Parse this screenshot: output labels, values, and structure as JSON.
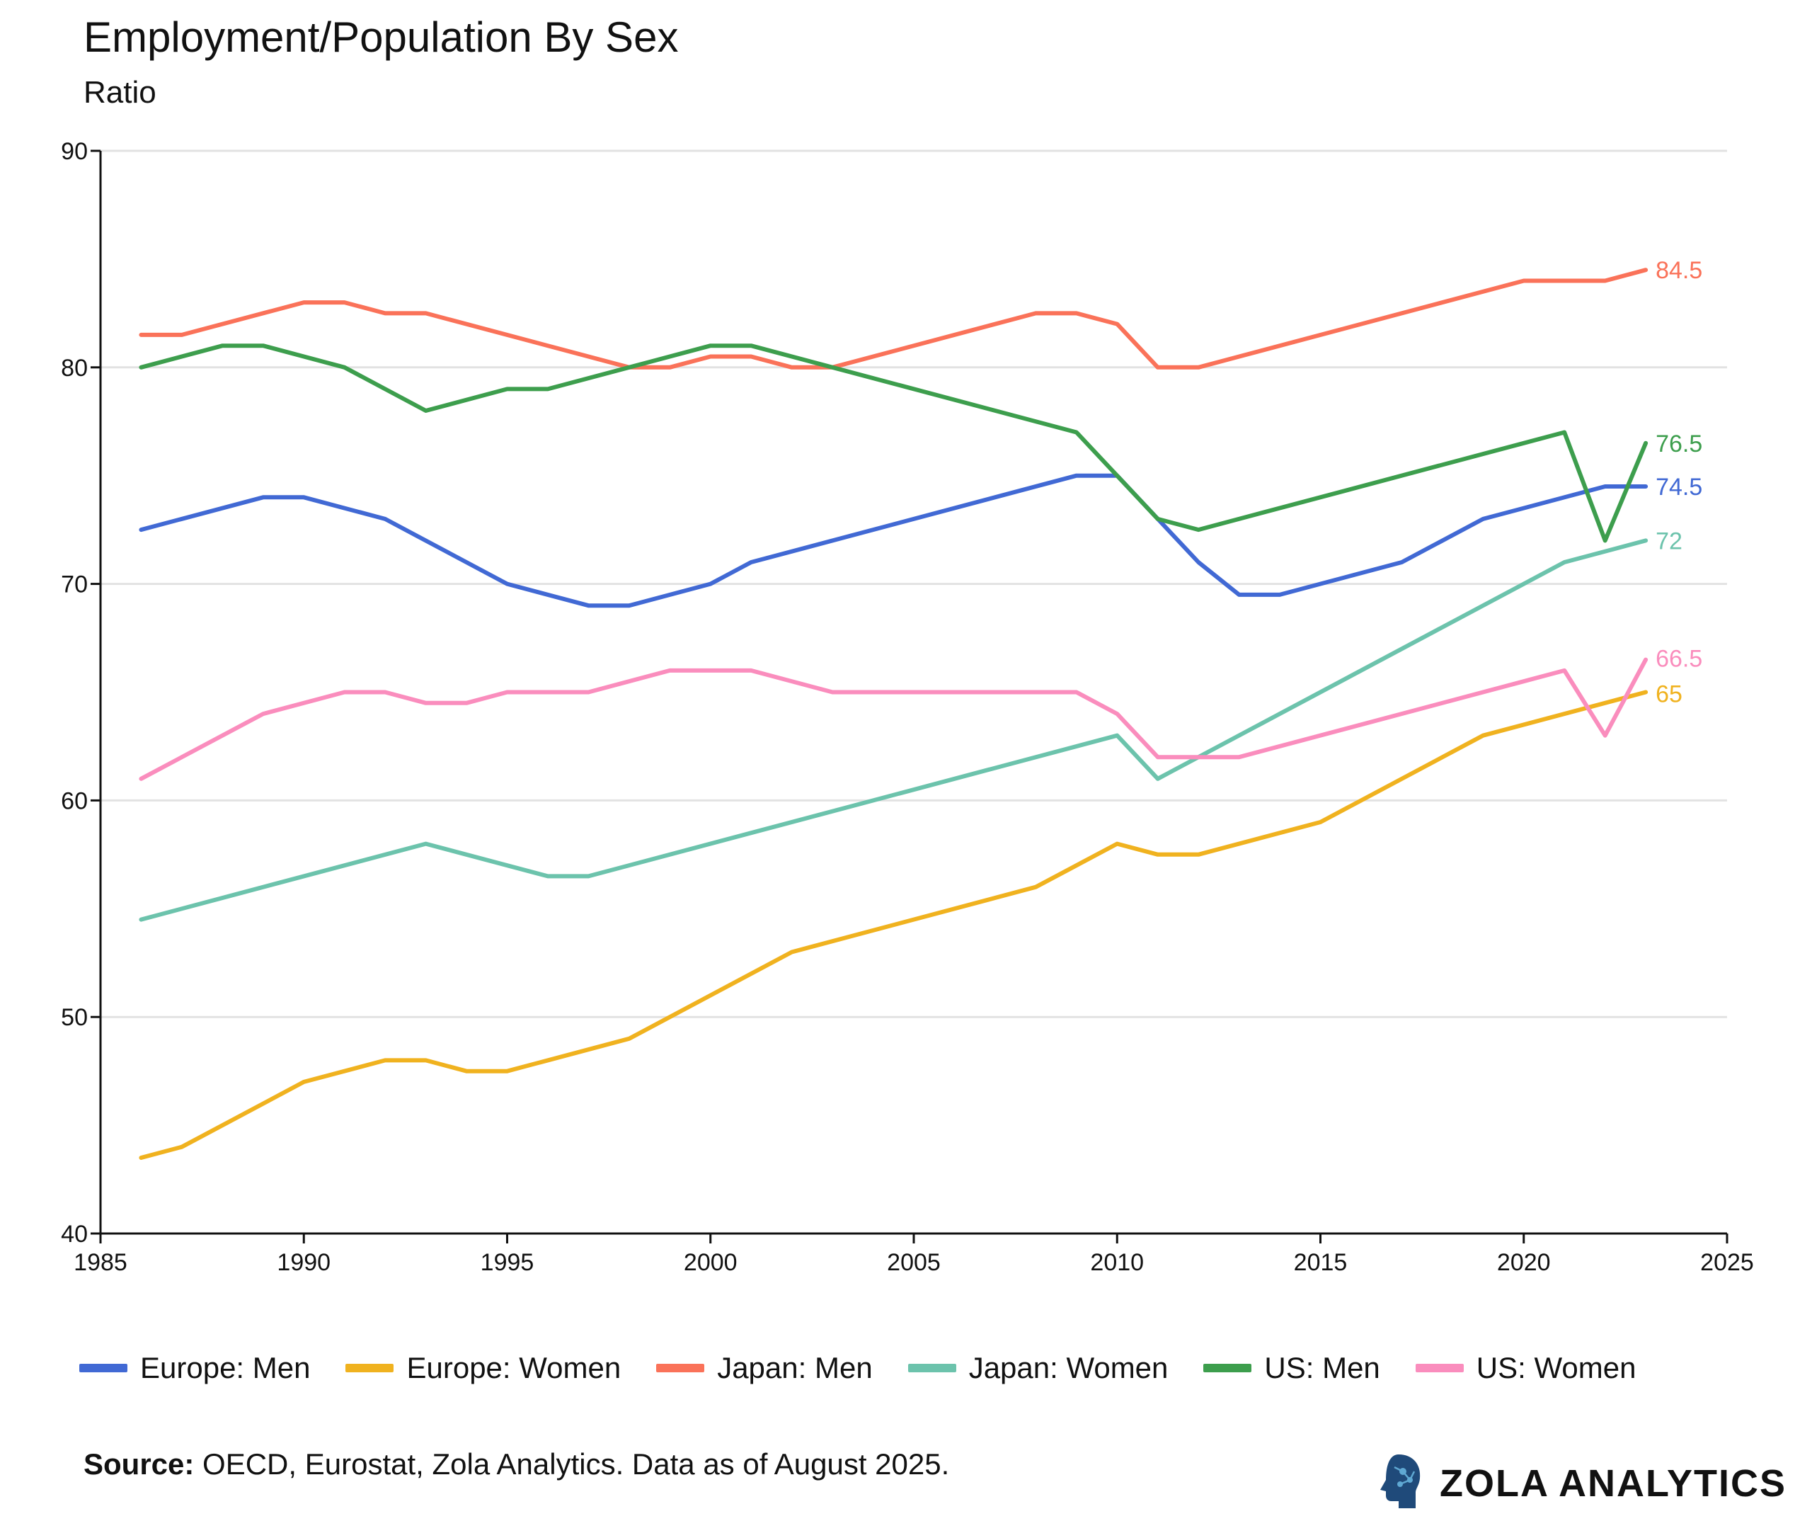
{
  "title": "Employment/Population By Sex",
  "subtitle": "Ratio",
  "source_bold": "Source:",
  "source_text": " OECD, Eurostat, Zola Analytics. Data as of August 2025.",
  "brand": "ZOLA ANALYTICS",
  "chart_data": {
    "type": "line",
    "title": "Employment/Population By Sex",
    "ylabel": "Ratio",
    "xlabel": "",
    "xlim": [
      1985,
      2025
    ],
    "ylim": [
      40,
      90
    ],
    "x_ticks": [
      1985,
      1990,
      1995,
      2000,
      2005,
      2010,
      2015,
      2020,
      2025
    ],
    "y_ticks": [
      40,
      50,
      60,
      70,
      80,
      90
    ],
    "x_tick_labels": [
      "1985",
      "1990",
      "1995",
      "2000",
      "2005",
      "2010",
      "2015",
      "2020",
      "2025"
    ],
    "y_tick_labels": [
      "40",
      "50",
      "60",
      "70",
      "80",
      "90"
    ],
    "grid": "horizontal",
    "legend_position": "bottom",
    "series": [
      {
        "name": "Europe: Men",
        "color": "#4169d4",
        "end_label": "74.5",
        "points": [
          [
            1986,
            72.5
          ],
          [
            1989,
            74
          ],
          [
            1990,
            74
          ],
          [
            1992,
            73
          ],
          [
            1995,
            70
          ],
          [
            1997,
            69
          ],
          [
            1998,
            69
          ],
          [
            2000,
            70
          ],
          [
            2001,
            71
          ],
          [
            2009,
            75
          ],
          [
            2010,
            75
          ],
          [
            2012,
            71
          ],
          [
            2013,
            69.5
          ],
          [
            2014,
            69.5
          ],
          [
            2017,
            71
          ],
          [
            2019,
            73
          ],
          [
            2022,
            74.5
          ],
          [
            2023,
            74.5
          ]
        ]
      },
      {
        "name": "Europe: Women",
        "color": "#f0b21f",
        "end_label": "65",
        "points": [
          [
            1986,
            43.5
          ],
          [
            1987,
            44
          ],
          [
            1990,
            47
          ],
          [
            1992,
            48
          ],
          [
            1993,
            48
          ],
          [
            1994,
            47.5
          ],
          [
            1995,
            47.5
          ],
          [
            1998,
            49
          ],
          [
            2002,
            53
          ],
          [
            2008,
            56
          ],
          [
            2010,
            58
          ],
          [
            2011,
            57.5
          ],
          [
            2012,
            57.5
          ],
          [
            2015,
            59
          ],
          [
            2019,
            63
          ],
          [
            2023,
            65
          ]
        ]
      },
      {
        "name": "Japan: Men",
        "color": "#fa7259",
        "end_label": "84.5",
        "points": [
          [
            1986,
            81.5
          ],
          [
            1987,
            81.5
          ],
          [
            1990,
            83
          ],
          [
            1991,
            83
          ],
          [
            1992,
            82.5
          ],
          [
            1993,
            82.5
          ],
          [
            1998,
            80
          ],
          [
            1999,
            80
          ],
          [
            2000,
            80.5
          ],
          [
            2001,
            80.5
          ],
          [
            2002,
            80
          ],
          [
            2003,
            80
          ],
          [
            2008,
            82.5
          ],
          [
            2009,
            82.5
          ],
          [
            2010,
            82
          ],
          [
            2011,
            80
          ],
          [
            2012,
            80
          ],
          [
            2020,
            84
          ],
          [
            2022,
            84
          ],
          [
            2023,
            84.5
          ]
        ]
      },
      {
        "name": "Japan: Women",
        "color": "#6cc3ac",
        "end_label": "72",
        "points": [
          [
            1986,
            54.5
          ],
          [
            1993,
            58
          ],
          [
            1996,
            56.5
          ],
          [
            1997,
            56.5
          ],
          [
            2010,
            63
          ],
          [
            2011,
            61
          ],
          [
            2021,
            71
          ],
          [
            2023,
            72
          ]
        ]
      },
      {
        "name": "US: Men",
        "color": "#3d9e4d",
        "end_label": "76.5",
        "points": [
          [
            1986,
            80
          ],
          [
            1988,
            81
          ],
          [
            1989,
            81
          ],
          [
            1991,
            80
          ],
          [
            1993,
            78
          ],
          [
            1995,
            79
          ],
          [
            1996,
            79
          ],
          [
            2000,
            81
          ],
          [
            2001,
            81
          ],
          [
            2003,
            80
          ],
          [
            2009,
            77
          ],
          [
            2011,
            73
          ],
          [
            2012,
            72.5
          ],
          [
            2021,
            77
          ],
          [
            2022,
            72
          ],
          [
            2023,
            76.5
          ]
        ]
      },
      {
        "name": "US: Women",
        "color": "#fa8dbd",
        "end_label": "66.5",
        "points": [
          [
            1986,
            61
          ],
          [
            1989,
            64
          ],
          [
            1991,
            65
          ],
          [
            1992,
            65
          ],
          [
            1993,
            64.5
          ],
          [
            1994,
            64.5
          ],
          [
            1995,
            65
          ],
          [
            1997,
            65
          ],
          [
            1999,
            66
          ],
          [
            2001,
            66
          ],
          [
            2003,
            65
          ],
          [
            2009,
            65
          ],
          [
            2010,
            64
          ],
          [
            2011,
            62
          ],
          [
            2013,
            62
          ],
          [
            2021,
            66
          ],
          [
            2022,
            63
          ],
          [
            2023,
            66.5
          ]
        ]
      }
    ]
  }
}
